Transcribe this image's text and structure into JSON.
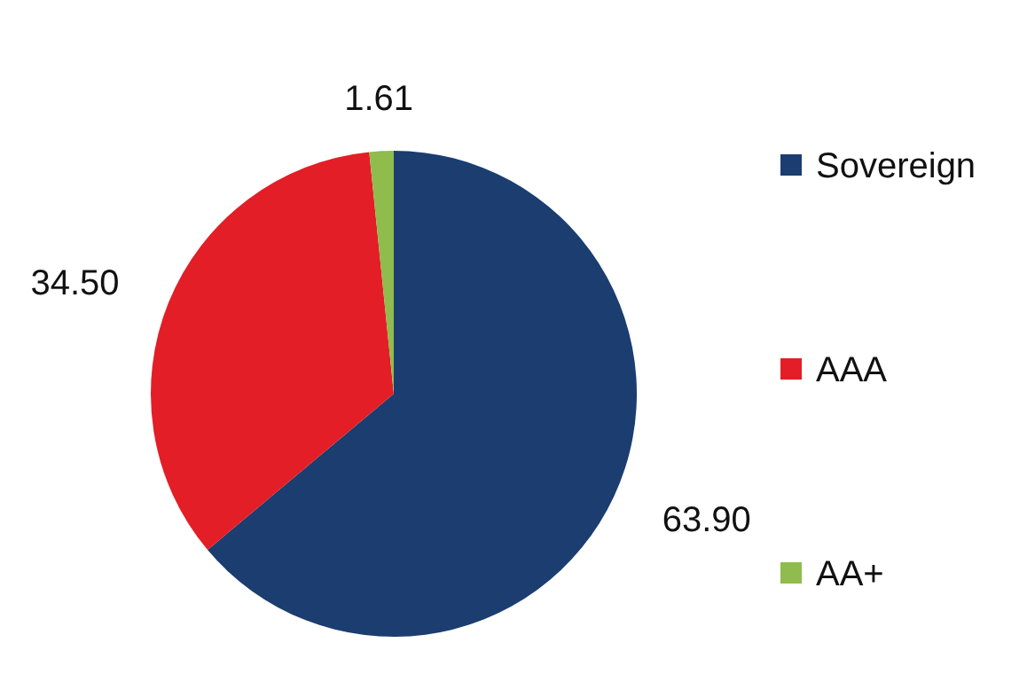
{
  "chart_data": {
    "type": "pie",
    "categories": [
      "Sovereign",
      "AAA",
      "AA+"
    ],
    "values": [
      63.9,
      34.5,
      1.61
    ],
    "colors": [
      "#1b3d6f",
      "#e31e26",
      "#8fbc4c"
    ],
    "value_labels": [
      "63.90",
      "34.50",
      "1.61"
    ],
    "legend": "right"
  }
}
